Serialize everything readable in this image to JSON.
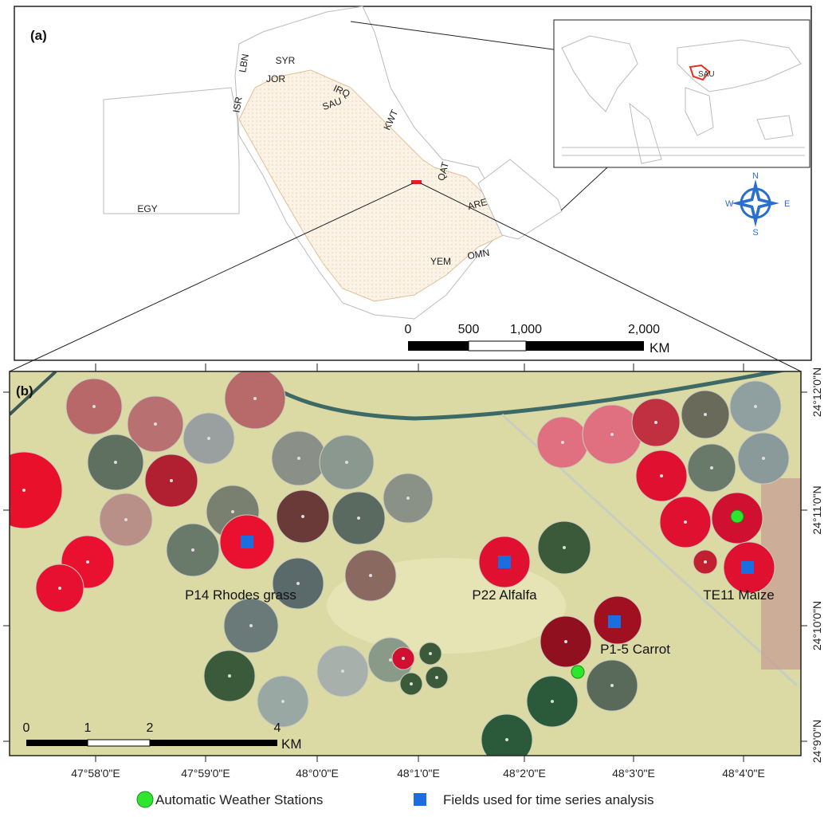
{
  "panel_a": {
    "label": "(a)",
    "countries": [
      "EGY",
      "LBN",
      "SYR",
      "JOR",
      "ISR",
      "IRQ",
      "SAU",
      "KWT",
      "QAT",
      "ARE",
      "YEM",
      "OMN"
    ],
    "scale_bar": {
      "ticks": [
        "0",
        "500",
        "1,000",
        "2,000"
      ],
      "unit": "KM"
    },
    "compass": {
      "north": "N",
      "east": "E",
      "south": "S",
      "west": "W"
    },
    "inset_label": "SAU"
  },
  "panel_b": {
    "label": "(b)",
    "fields": [
      "P14 Rhodes grass",
      "P22 Alfalfa",
      "TE11 Maize",
      "P1-5 Carrot"
    ],
    "scale_bar": {
      "ticks": [
        "0",
        "1",
        "2",
        "4"
      ],
      "unit": "KM"
    },
    "longitudes": [
      "47°58'0\"E",
      "47°59'0\"E",
      "48°0'0\"E",
      "48°1'0\"E",
      "48°2'0\"E",
      "48°3'0\"E",
      "48°4'0\"E"
    ],
    "latitudes": [
      "24°12'0\"N",
      "24°11'0\"N",
      "24°10'0\"N",
      "24°9'0\"N"
    ]
  },
  "legend": [
    "Automatic Weather Stations",
    "Fields used for time series analysis"
  ]
}
